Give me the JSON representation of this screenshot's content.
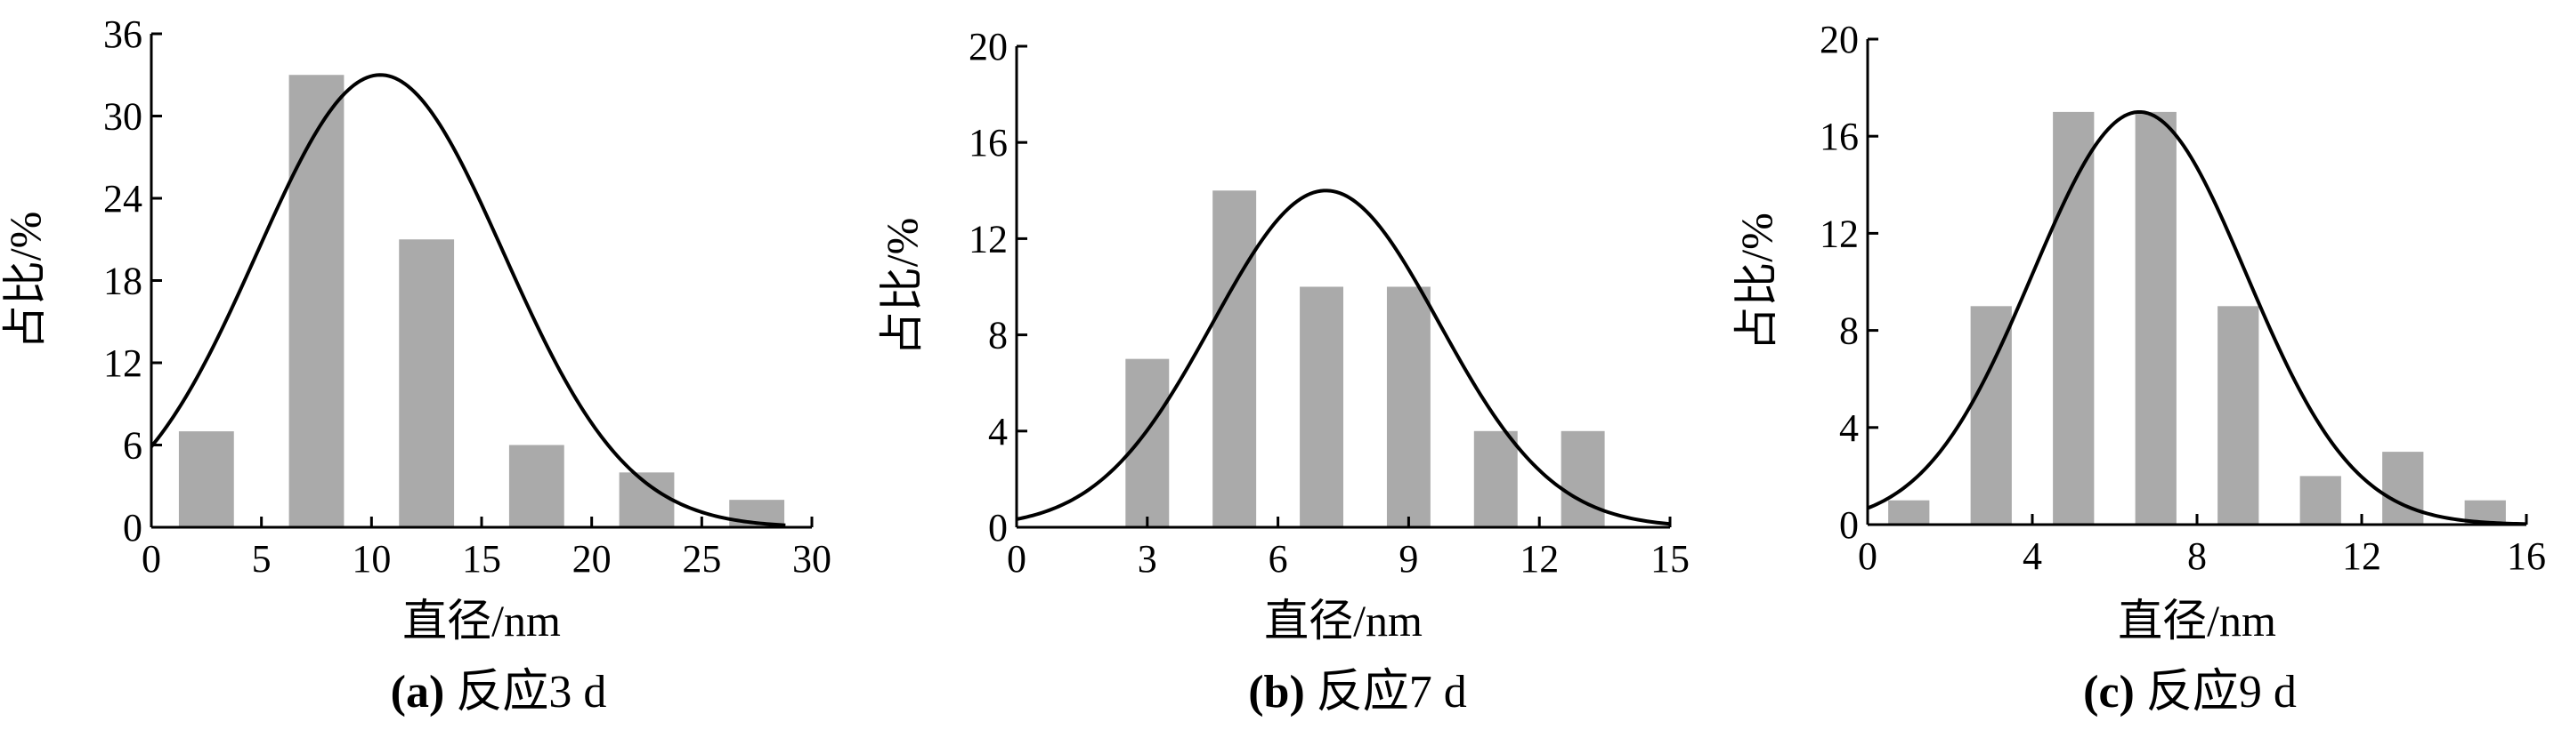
{
  "chart_data": [
    {
      "type": "bar",
      "caption_prefix": "(a)",
      "caption_text": "反应3 d",
      "xlabel": "直径/nm",
      "ylabel": "占比/%",
      "xlim": [
        0,
        30
      ],
      "ylim": [
        0,
        36
      ],
      "xticks": [
        0,
        5,
        10,
        15,
        20,
        25,
        30
      ],
      "yticks": [
        0,
        6,
        12,
        18,
        24,
        30,
        36
      ],
      "bar_width": 2.5,
      "bars": [
        {
          "x": 2.5,
          "value": 7
        },
        {
          "x": 7.5,
          "value": 33
        },
        {
          "x": 12.5,
          "value": 21
        },
        {
          "x": 17.5,
          "value": 6
        },
        {
          "x": 22.5,
          "value": 4
        },
        {
          "x": 27.5,
          "value": 2
        }
      ],
      "fit": {
        "type": "gaussian",
        "peak": 33,
        "mean": 10.4,
        "sigma": 5.6,
        "x_range": [
          0,
          28.8
        ]
      },
      "colors": {
        "bar": "#aaaaaa",
        "fit": "#000000"
      }
    },
    {
      "type": "bar",
      "caption_prefix": "(b)",
      "caption_text": "反应7 d",
      "xlabel": "直径/nm",
      "ylabel": "占比/%",
      "xlim": [
        0,
        15
      ],
      "ylim": [
        0,
        20
      ],
      "xticks": [
        0,
        3,
        6,
        9,
        12,
        15
      ],
      "yticks": [
        0,
        4,
        8,
        12,
        16,
        20
      ],
      "bar_width": 1.0,
      "bars": [
        {
          "x": 3,
          "value": 7
        },
        {
          "x": 5,
          "value": 14
        },
        {
          "x": 7,
          "value": 10
        },
        {
          "x": 9,
          "value": 10
        },
        {
          "x": 11,
          "value": 4
        },
        {
          "x": 13,
          "value": 4
        }
      ],
      "fit": {
        "type": "gaussian",
        "peak": 14,
        "mean": 7.1,
        "sigma": 2.6,
        "x_range": [
          0,
          15
        ]
      },
      "colors": {
        "bar": "#aaaaaa",
        "fit": "#000000"
      }
    },
    {
      "type": "bar",
      "caption_prefix": "(c)",
      "caption_text": "反应9 d",
      "xlabel": "直径/nm",
      "ylabel": "占比/%",
      "xlim": [
        0,
        16
      ],
      "ylim": [
        0,
        20
      ],
      "xticks": [
        0,
        4,
        8,
        12,
        16
      ],
      "yticks": [
        0,
        4,
        8,
        12,
        16,
        20
      ],
      "bar_width": 1.0,
      "bars": [
        {
          "x": 1,
          "value": 1
        },
        {
          "x": 3,
          "value": 9
        },
        {
          "x": 5,
          "value": 17
        },
        {
          "x": 7,
          "value": 17
        },
        {
          "x": 9,
          "value": 9
        },
        {
          "x": 11,
          "value": 2
        },
        {
          "x": 13,
          "value": 3
        },
        {
          "x": 15,
          "value": 1
        }
      ],
      "fit": {
        "type": "gaussian",
        "peak": 17,
        "mean": 6.6,
        "sigma": 2.6,
        "x_range": [
          0,
          16
        ]
      },
      "colors": {
        "bar": "#aaaaaa",
        "fit": "#000000"
      }
    }
  ]
}
